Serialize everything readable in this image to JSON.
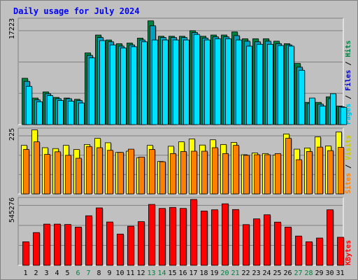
{
  "title": "Daily usage for July 2024",
  "chart_data": [
    {
      "type": "bar",
      "panel": "hits-files-pages",
      "ylabel_parts": [
        "Pages",
        "/",
        "Files",
        "/",
        "Hits"
      ],
      "ymax_label": "17223",
      "ylim": [
        0,
        17223
      ],
      "grid": true,
      "categories": [
        "1",
        "2",
        "3",
        "4",
        "5",
        "6",
        "7",
        "8",
        "9",
        "10",
        "11",
        "12",
        "13",
        "14",
        "15",
        "16",
        "17",
        "18",
        "19",
        "20",
        "21",
        "22",
        "23",
        "24",
        "25",
        "26",
        "27",
        "28",
        "29",
        "30",
        "31"
      ],
      "series": [
        {
          "name": "Hits",
          "color": "#008040",
          "values": [
            7500,
            4300,
            5300,
            4400,
            4300,
            4100,
            11600,
            14500,
            13700,
            13100,
            13200,
            14000,
            16800,
            14300,
            14300,
            14300,
            15200,
            14300,
            14500,
            14500,
            15000,
            13900,
            13900,
            13900,
            13500,
            13100,
            9900,
            3600,
            3600,
            4500,
            3000
          ]
        },
        {
          "name": "Files",
          "color": "#00a0c0",
          "values": [
            7000,
            4000,
            5000,
            4200,
            4200,
            3900,
            11200,
            14100,
            13400,
            12700,
            12900,
            13700,
            16000,
            14100,
            14100,
            14100,
            14900,
            14000,
            14200,
            14200,
            14400,
            13500,
            13400,
            13500,
            13100,
            12900,
            9300,
            3400,
            3300,
            4200,
            2900
          ]
        },
        {
          "name": "Pages",
          "color": "#00e0ff",
          "values": [
            6200,
            3700,
            4700,
            3900,
            3800,
            3500,
            10800,
            13600,
            12900,
            12400,
            12600,
            13400,
            13700,
            13700,
            13700,
            13700,
            14600,
            13700,
            13900,
            13900,
            13700,
            12700,
            13000,
            13000,
            12800,
            12700,
            8800,
            4300,
            3000,
            5000,
            2800
          ]
        }
      ]
    },
    {
      "type": "bar",
      "panel": "visits-sites",
      "ylabel_parts": [
        "Sites",
        "/",
        "Visits"
      ],
      "ymax_label": "225",
      "ylim": [
        0,
        225
      ],
      "grid": true,
      "categories": [
        "1",
        "2",
        "3",
        "4",
        "5",
        "6",
        "7",
        "8",
        "9",
        "10",
        "11",
        "12",
        "13",
        "14",
        "15",
        "16",
        "17",
        "18",
        "19",
        "20",
        "21",
        "22",
        "23",
        "24",
        "25",
        "26",
        "27",
        "28",
        "29",
        "30",
        "31"
      ],
      "series": [
        {
          "name": "Visits",
          "color": "#ffff00",
          "values": [
            166,
            219,
            158,
            155,
            166,
            152,
            169,
            190,
            175,
            142,
            146,
            124,
            166,
            111,
            163,
            178,
            188,
            167,
            185,
            169,
            176,
            134,
            140,
            138,
            133,
            205,
            153,
            157,
            195,
            164,
            212
          ]
        },
        {
          "name": "Sites",
          "color": "#ff8000",
          "values": [
            152,
            178,
            135,
            144,
            132,
            122,
            162,
            158,
            149,
            142,
            153,
            126,
            152,
            110,
            138,
            145,
            146,
            146,
            158,
            138,
            166,
            132,
            134,
            134,
            138,
            190,
            117,
            145,
            160,
            148,
            159
          ]
        }
      ]
    },
    {
      "type": "bar",
      "panel": "kbytes",
      "ylabel_parts": [
        "KBytes"
      ],
      "ymax_label": "545276",
      "ylim": [
        0,
        545276
      ],
      "grid": true,
      "categories": [
        "1",
        "2",
        "3",
        "4",
        "5",
        "6",
        "7",
        "8",
        "9",
        "10",
        "11",
        "12",
        "13",
        "14",
        "15",
        "16",
        "17",
        "18",
        "19",
        "20",
        "21",
        "22",
        "23",
        "24",
        "25",
        "26",
        "27",
        "28",
        "29",
        "30",
        "31"
      ],
      "series": [
        {
          "name": "KBytes",
          "color": "#ff0000",
          "values": [
            189000,
            263000,
            331000,
            331000,
            328000,
            307000,
            398000,
            461000,
            348000,
            251000,
            314000,
            351000,
            489000,
            457000,
            465000,
            457000,
            529000,
            436000,
            446000,
            494000,
            448000,
            327000,
            373000,
            406000,
            347000,
            307000,
            235000,
            189000,
            219000,
            446000,
            225000
          ]
        }
      ]
    }
  ]
}
